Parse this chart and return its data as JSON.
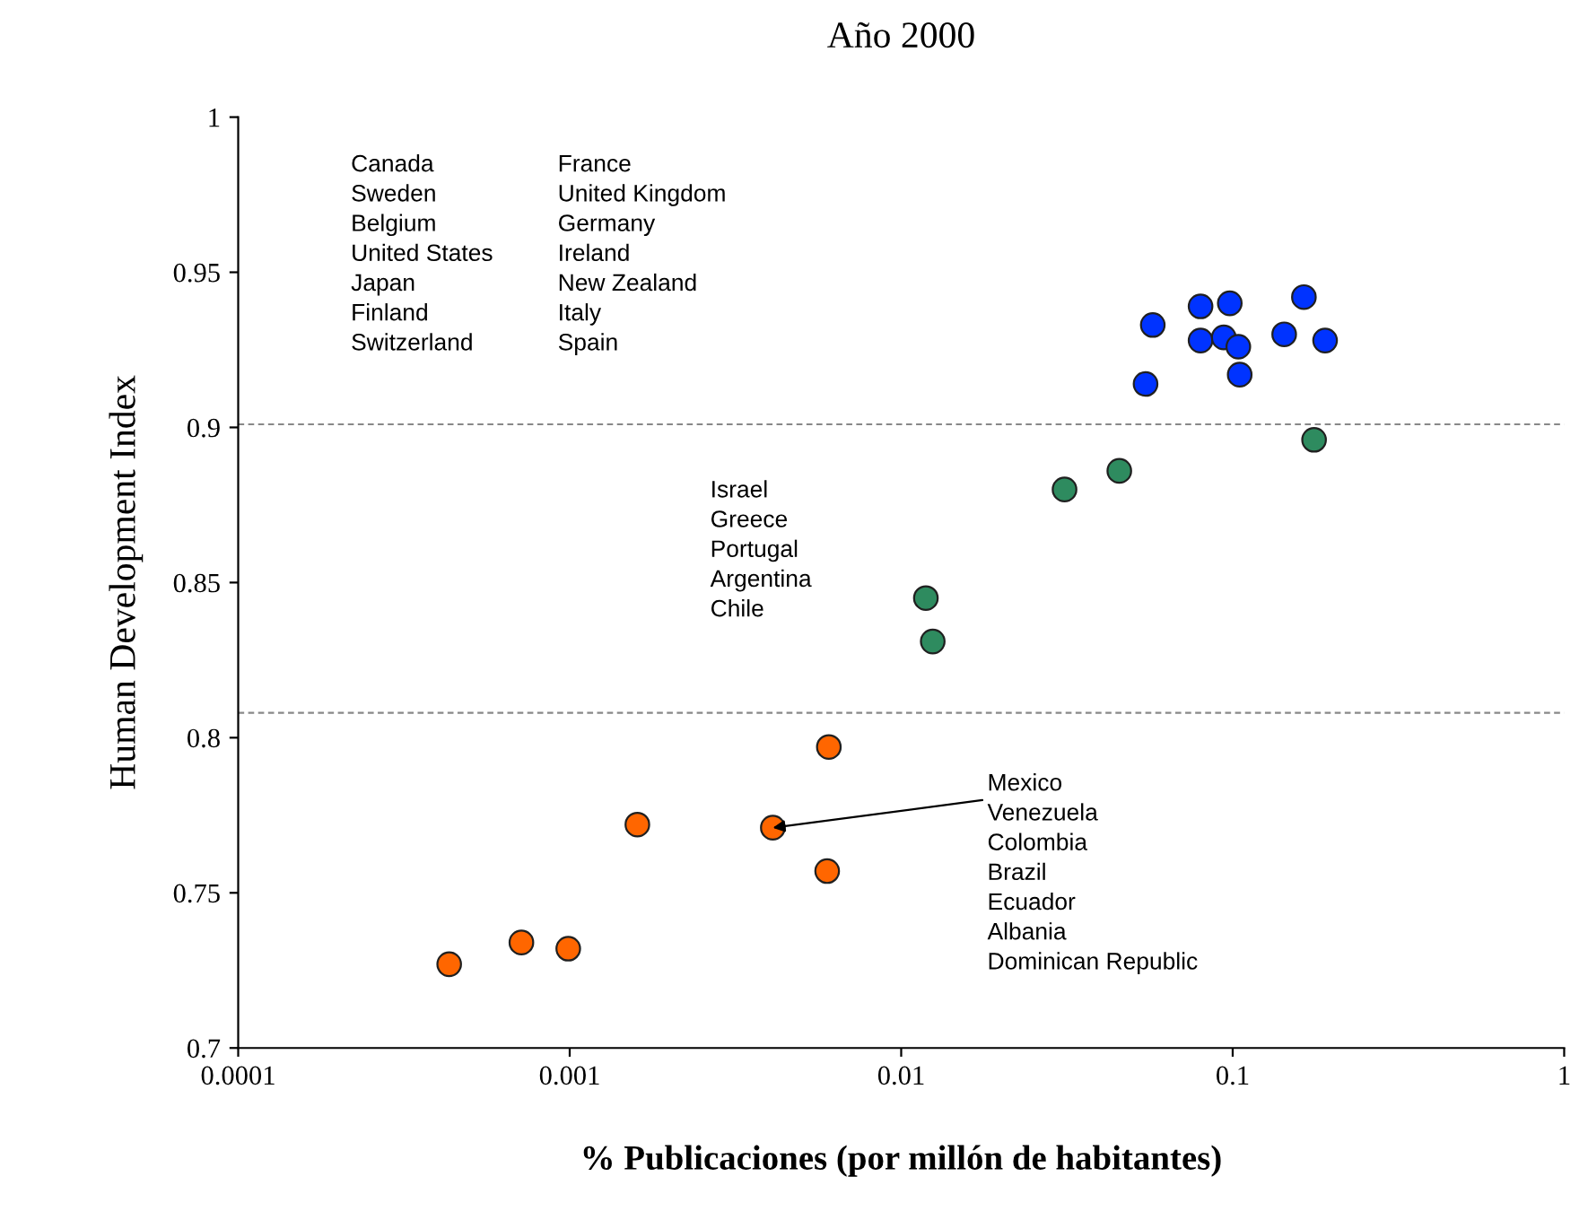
{
  "chart_data": {
    "type": "scatter",
    "title": "Año 2000",
    "xlabel": "% Publicaciones (por millón de habitantes)",
    "ylabel": "Human Development Index",
    "log": "x",
    "xlim": [
      0.0001,
      1
    ],
    "xticks": [
      0.0001,
      0.001,
      0.01,
      0.1,
      1
    ],
    "ylim": [
      0.7,
      1
    ],
    "yticks": [
      0.7,
      0.75,
      0.8,
      0.85,
      0.9,
      0.95,
      1
    ],
    "grid": false,
    "legend": false,
    "marker": "circle",
    "series": [
      {
        "color": "#0033ff",
        "x": [
          0.0574,
          0.08,
          0.098,
          0.164,
          0.08,
          0.094,
          0.104,
          0.143,
          0.19,
          0.105,
          0.0546
        ],
        "values": [
          0.933,
          0.939,
          0.94,
          0.942,
          0.928,
          0.929,
          0.926,
          0.93,
          0.928,
          0.917,
          0.914
        ]
      },
      {
        "color": "#2e8b5f",
        "x": [
          0.0311,
          0.0455,
          0.01187,
          0.01245,
          0.176
        ],
        "values": [
          0.88,
          0.886,
          0.845,
          0.831,
          0.896
        ]
      },
      {
        "color": "#ff6600",
        "x": [
          0.00605,
          0.0016,
          0.0041,
          0.00598,
          0.000715,
          0.00099,
          0.000433
        ],
        "values": [
          0.797,
          0.772,
          0.771,
          0.757,
          0.734,
          0.732,
          0.727
        ]
      }
    ],
    "ref_lines": [
      {
        "axis": "y",
        "value": 0.901,
        "color": "#888888",
        "line_style": "dashed"
      },
      {
        "axis": "y",
        "value": 0.808,
        "color": "#888888",
        "line_style": "dashed"
      }
    ],
    "annotations": [
      "Canada\nSweden\nBelgium\nUnited States\nJapan\nFinland\nSwitzerland",
      "France\nUnited Kingdom\nGermany\nIreland\nNew Zealand\nItaly\nSpain",
      "Israel\nGreece\nPortugal\nArgentina\nChile",
      {
        "text": "Mexico\nVenezuela\nColombia\nBrazil\nEcuador\nAlbania\nDominican Republic",
        "x": 0.0041,
        "y": 0.771
      }
    ]
  }
}
